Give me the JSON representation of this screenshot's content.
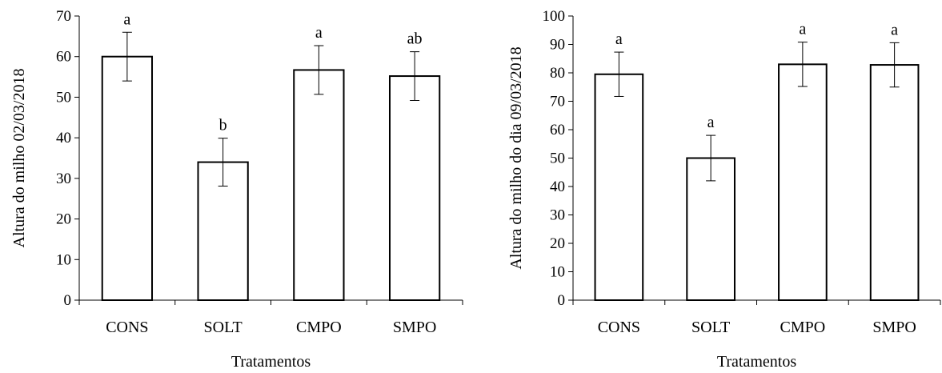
{
  "chart_data": [
    {
      "type": "bar",
      "categories": [
        "CONS",
        "SOLT",
        "CMPO",
        "SMPO"
      ],
      "values": [
        60,
        34,
        56.7,
        55.2
      ],
      "errors": [
        6,
        5.9,
        6,
        6
      ],
      "letters": [
        "a",
        "b",
        "a",
        "ab"
      ],
      "xlabel": "Tratamentos",
      "ylabel": "Altura do milho 02/03/2018",
      "ylim": [
        0,
        70
      ],
      "yticks": [
        0,
        10,
        20,
        30,
        40,
        50,
        60,
        70
      ],
      "bar_fill": "#ffffff",
      "bar_stroke": "#000000",
      "grid": false
    },
    {
      "type": "bar",
      "categories": [
        "CONS",
        "SOLT",
        "CMPO",
        "SMPO"
      ],
      "values": [
        79.5,
        50,
        83,
        82.8
      ],
      "errors": [
        7.8,
        8,
        7.8,
        7.8
      ],
      "letters": [
        "a",
        "a",
        "a",
        "a"
      ],
      "xlabel": "Tratamentos",
      "ylabel": "Altura do milho do dia 09/03/2018",
      "ylim": [
        0,
        100
      ],
      "yticks": [
        0,
        10,
        20,
        30,
        40,
        50,
        60,
        70,
        80,
        90,
        100
      ],
      "bar_fill": "#ffffff",
      "bar_stroke": "#000000",
      "grid": false
    }
  ]
}
